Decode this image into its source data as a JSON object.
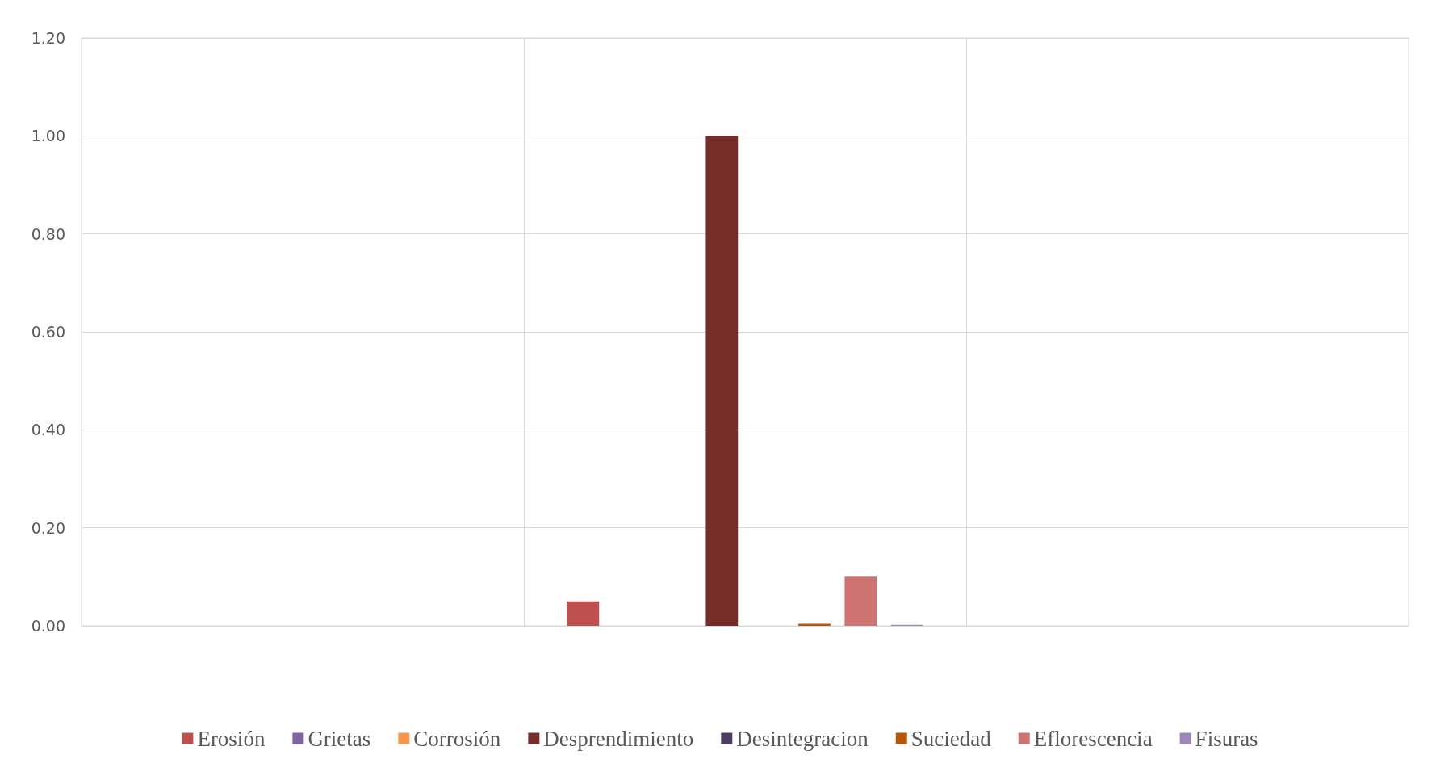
{
  "chart_data": {
    "type": "bar",
    "categories": [
      null,
      null,
      null
    ],
    "series": [
      {
        "name": "Erosión",
        "color": "#c0504d",
        "values": [
          null,
          0.05,
          null
        ]
      },
      {
        "name": "Grietas",
        "color": "#8064a2",
        "values": [
          null,
          0,
          null
        ]
      },
      {
        "name": "Corrosión",
        "color": "#f79646",
        "values": [
          null,
          0,
          null
        ]
      },
      {
        "name": "Desprendimiento",
        "color": "#772c2a",
        "values": [
          null,
          1.0,
          null
        ]
      },
      {
        "name": "Desintegracion",
        "color": "#4d3b62",
        "values": [
          null,
          0,
          null
        ]
      },
      {
        "name": "Suciedad",
        "color": "#b65708",
        "values": [
          null,
          0.004,
          null
        ]
      },
      {
        "name": "Eflorescencia",
        "color": "#cd7371",
        "values": [
          null,
          0.1,
          null
        ]
      },
      {
        "name": "Fisuras",
        "color": "#9d87b8",
        "values": [
          null,
          0.002,
          null
        ]
      }
    ],
    "ylim": [
      0,
      1.2
    ],
    "yticks": [
      {
        "value": 0,
        "label": "0.00"
      },
      {
        "value": 0.2,
        "label": "0.20"
      },
      {
        "value": 0.4,
        "label": "0.40"
      },
      {
        "value": 0.6,
        "label": "0.60"
      },
      {
        "value": 0.8,
        "label": "0.80"
      },
      {
        "value": 1.0,
        "label": "1.00"
      },
      {
        "value": 1.2,
        "label": "1.20"
      }
    ],
    "grid": true,
    "legend": "bottom"
  }
}
